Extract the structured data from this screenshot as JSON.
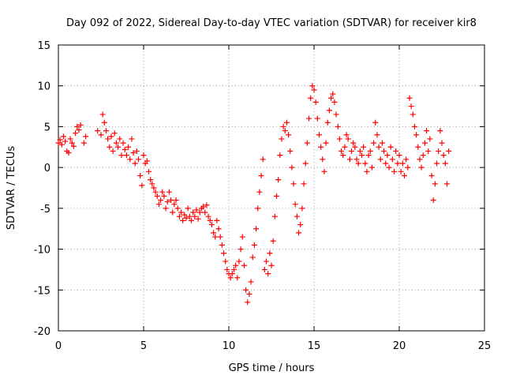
{
  "chart_data": {
    "type": "scatter",
    "title": "Day 092 of 2022, Sidereal Day-to-day VTEC variation (SDTVAR) for receiver kir8",
    "xlabel": "GPS time / hours",
    "ylabel": "SDTVAR / TECUs",
    "xlim": [
      0,
      25
    ],
    "ylim": [
      -20,
      15
    ],
    "x_ticks": [
      0,
      5,
      10,
      15,
      20,
      25
    ],
    "x_tick_labels": [
      "0",
      "5",
      "10",
      "15",
      "20",
      "25"
    ],
    "y_ticks": [
      -20,
      -15,
      -10,
      -5,
      0,
      5,
      10,
      15
    ],
    "y_tick_labels": [
      "-20",
      "-15",
      "-10",
      "-5",
      "0",
      "5",
      "10",
      "15"
    ],
    "grid": true,
    "marker": "+",
    "color": "#ff0000",
    "series": [
      {
        "name": "SDTVAR",
        "points": [
          [
            0.0,
            3.0
          ],
          [
            0.1,
            3.4
          ],
          [
            0.2,
            2.8
          ],
          [
            0.3,
            3.8
          ],
          [
            0.4,
            3.2
          ],
          [
            0.5,
            2.0
          ],
          [
            0.6,
            1.8
          ],
          [
            0.7,
            3.5
          ],
          [
            0.8,
            3.0
          ],
          [
            0.9,
            2.6
          ],
          [
            1.0,
            4.2
          ],
          [
            1.1,
            5.0
          ],
          [
            1.2,
            4.6
          ],
          [
            1.3,
            5.2
          ],
          [
            1.5,
            3.0
          ],
          [
            1.6,
            3.8
          ],
          [
            2.3,
            4.5
          ],
          [
            2.5,
            4.0
          ],
          [
            2.6,
            6.5
          ],
          [
            2.7,
            5.5
          ],
          [
            2.8,
            4.5
          ],
          [
            2.9,
            3.5
          ],
          [
            3.0,
            2.5
          ],
          [
            3.1,
            3.8
          ],
          [
            3.2,
            2.0
          ],
          [
            3.3,
            4.2
          ],
          [
            3.4,
            3.0
          ],
          [
            3.5,
            2.5
          ],
          [
            3.6,
            3.5
          ],
          [
            3.7,
            1.5
          ],
          [
            3.8,
            3.0
          ],
          [
            3.9,
            2.2
          ],
          [
            4.0,
            1.5
          ],
          [
            4.1,
            2.5
          ],
          [
            4.2,
            1.0
          ],
          [
            4.3,
            3.5
          ],
          [
            4.4,
            1.8
          ],
          [
            4.5,
            0.5
          ],
          [
            4.6,
            2.0
          ],
          [
            4.7,
            1.0
          ],
          [
            4.8,
            -1.0
          ],
          [
            4.9,
            -2.2
          ],
          [
            5.0,
            1.5
          ],
          [
            5.1,
            0.5
          ],
          [
            5.2,
            0.8
          ],
          [
            5.3,
            -0.5
          ],
          [
            5.4,
            -1.5
          ],
          [
            5.5,
            -2.0
          ],
          [
            5.6,
            -2.5
          ],
          [
            5.7,
            -3.0
          ],
          [
            5.8,
            -3.5
          ],
          [
            5.9,
            -4.5
          ],
          [
            6.0,
            -4.0
          ],
          [
            6.1,
            -3.0
          ],
          [
            6.2,
            -3.5
          ],
          [
            6.3,
            -5.0
          ],
          [
            6.4,
            -4.2
          ],
          [
            6.5,
            -3.0
          ],
          [
            6.6,
            -4.0
          ],
          [
            6.7,
            -5.5
          ],
          [
            6.8,
            -4.5
          ],
          [
            6.9,
            -4.0
          ],
          [
            7.0,
            -5.0
          ],
          [
            7.1,
            -6.0
          ],
          [
            7.2,
            -5.5
          ],
          [
            7.3,
            -6.5
          ],
          [
            7.4,
            -5.8
          ],
          [
            7.5,
            -6.2
          ],
          [
            7.6,
            -5.0
          ],
          [
            7.7,
            -6.0
          ],
          [
            7.8,
            -6.5
          ],
          [
            7.9,
            -5.5
          ],
          [
            8.0,
            -6.0
          ],
          [
            8.1,
            -5.2
          ],
          [
            8.2,
            -6.3
          ],
          [
            8.3,
            -5.5
          ],
          [
            8.4,
            -5.0
          ],
          [
            8.5,
            -4.8
          ],
          [
            8.6,
            -5.5
          ],
          [
            8.7,
            -4.6
          ],
          [
            8.8,
            -6.0
          ],
          [
            8.9,
            -6.5
          ],
          [
            9.0,
            -7.0
          ],
          [
            9.1,
            -8.0
          ],
          [
            9.2,
            -8.5
          ],
          [
            9.3,
            -6.5
          ],
          [
            9.4,
            -7.5
          ],
          [
            9.5,
            -8.5
          ],
          [
            9.6,
            -9.5
          ],
          [
            9.7,
            -10.5
          ],
          [
            9.8,
            -11.5
          ],
          [
            9.9,
            -12.5
          ],
          [
            10.0,
            -13.0
          ],
          [
            10.1,
            -13.5
          ],
          [
            10.2,
            -13.0
          ],
          [
            10.3,
            -12.5
          ],
          [
            10.4,
            -12.0
          ],
          [
            10.5,
            -13.5
          ],
          [
            10.6,
            -11.5
          ],
          [
            10.7,
            -10.0
          ],
          [
            10.8,
            -8.5
          ],
          [
            10.9,
            -12.0
          ],
          [
            11.0,
            -15.0
          ],
          [
            11.1,
            -16.5
          ],
          [
            11.2,
            -15.5
          ],
          [
            11.3,
            -14.0
          ],
          [
            11.4,
            -11.0
          ],
          [
            11.5,
            -9.5
          ],
          [
            11.6,
            -7.5
          ],
          [
            11.7,
            -5.0
          ],
          [
            11.8,
            -3.0
          ],
          [
            11.9,
            -1.0
          ],
          [
            12.0,
            1.0
          ],
          [
            12.1,
            -12.5
          ],
          [
            12.2,
            -11.5
          ],
          [
            12.3,
            -13.0
          ],
          [
            12.4,
            -10.5
          ],
          [
            12.5,
            -12.0
          ],
          [
            12.6,
            -9.0
          ],
          [
            12.7,
            -6.0
          ],
          [
            12.8,
            -3.5
          ],
          [
            12.9,
            -1.5
          ],
          [
            13.0,
            1.5
          ],
          [
            13.1,
            3.5
          ],
          [
            13.2,
            5.0
          ],
          [
            13.3,
            4.5
          ],
          [
            13.4,
            5.5
          ],
          [
            13.5,
            4.0
          ],
          [
            13.6,
            2.0
          ],
          [
            13.7,
            0.0
          ],
          [
            13.8,
            -2.0
          ],
          [
            13.9,
            -4.5
          ],
          [
            14.0,
            -6.0
          ],
          [
            14.1,
            -8.0
          ],
          [
            14.2,
            -7.0
          ],
          [
            14.3,
            -5.0
          ],
          [
            14.4,
            -2.0
          ],
          [
            14.5,
            0.5
          ],
          [
            14.6,
            3.0
          ],
          [
            14.7,
            6.0
          ],
          [
            14.8,
            8.5
          ],
          [
            14.9,
            10.0
          ],
          [
            15.0,
            9.5
          ],
          [
            15.1,
            8.0
          ],
          [
            15.2,
            6.0
          ],
          [
            15.3,
            4.0
          ],
          [
            15.4,
            2.5
          ],
          [
            15.5,
            1.0
          ],
          [
            15.6,
            -0.5
          ],
          [
            15.7,
            3.0
          ],
          [
            15.8,
            5.5
          ],
          [
            15.9,
            7.0
          ],
          [
            16.0,
            8.5
          ],
          [
            16.1,
            9.0
          ],
          [
            16.2,
            8.0
          ],
          [
            16.3,
            6.5
          ],
          [
            16.4,
            5.0
          ],
          [
            16.5,
            3.5
          ],
          [
            16.6,
            2.0
          ],
          [
            16.7,
            1.5
          ],
          [
            16.8,
            2.5
          ],
          [
            16.9,
            4.0
          ],
          [
            17.0,
            3.5
          ],
          [
            17.1,
            1.0
          ],
          [
            17.2,
            2.0
          ],
          [
            17.3,
            3.0
          ],
          [
            17.4,
            2.5
          ],
          [
            17.5,
            1.0
          ],
          [
            17.6,
            0.5
          ],
          [
            17.7,
            2.0
          ],
          [
            17.8,
            1.5
          ],
          [
            17.9,
            2.5
          ],
          [
            18.0,
            0.5
          ],
          [
            18.1,
            -0.5
          ],
          [
            18.2,
            1.5
          ],
          [
            18.3,
            2.0
          ],
          [
            18.4,
            0.0
          ],
          [
            18.5,
            3.0
          ],
          [
            18.6,
            5.5
          ],
          [
            18.7,
            4.0
          ],
          [
            18.8,
            2.5
          ],
          [
            18.9,
            1.0
          ],
          [
            19.0,
            3.0
          ],
          [
            19.1,
            2.0
          ],
          [
            19.2,
            0.5
          ],
          [
            19.3,
            1.5
          ],
          [
            19.4,
            0.0
          ],
          [
            19.5,
            2.5
          ],
          [
            19.6,
            1.0
          ],
          [
            19.7,
            -0.5
          ],
          [
            19.8,
            2.0
          ],
          [
            19.9,
            0.5
          ],
          [
            20.0,
            1.5
          ],
          [
            20.1,
            -0.5
          ],
          [
            20.2,
            0.5
          ],
          [
            20.3,
            -1.0
          ],
          [
            20.4,
            1.0
          ],
          [
            20.5,
            0.0
          ],
          [
            20.6,
            8.5
          ],
          [
            20.7,
            7.5
          ],
          [
            20.8,
            6.5
          ],
          [
            20.9,
            5.0
          ],
          [
            21.0,
            4.0
          ],
          [
            21.1,
            2.5
          ],
          [
            21.2,
            1.0
          ],
          [
            21.3,
            0.0
          ],
          [
            21.4,
            1.5
          ],
          [
            21.5,
            3.0
          ],
          [
            21.6,
            4.5
          ],
          [
            21.7,
            2.0
          ],
          [
            21.8,
            3.5
          ],
          [
            21.9,
            -1.0
          ],
          [
            22.0,
            -4.0
          ],
          [
            22.1,
            -2.0
          ],
          [
            22.2,
            0.5
          ],
          [
            22.3,
            2.0
          ],
          [
            22.4,
            4.5
          ],
          [
            22.5,
            3.0
          ],
          [
            22.6,
            1.5
          ],
          [
            22.7,
            0.5
          ],
          [
            22.8,
            -2.0
          ],
          [
            22.9,
            2.0
          ]
        ]
      }
    ]
  }
}
